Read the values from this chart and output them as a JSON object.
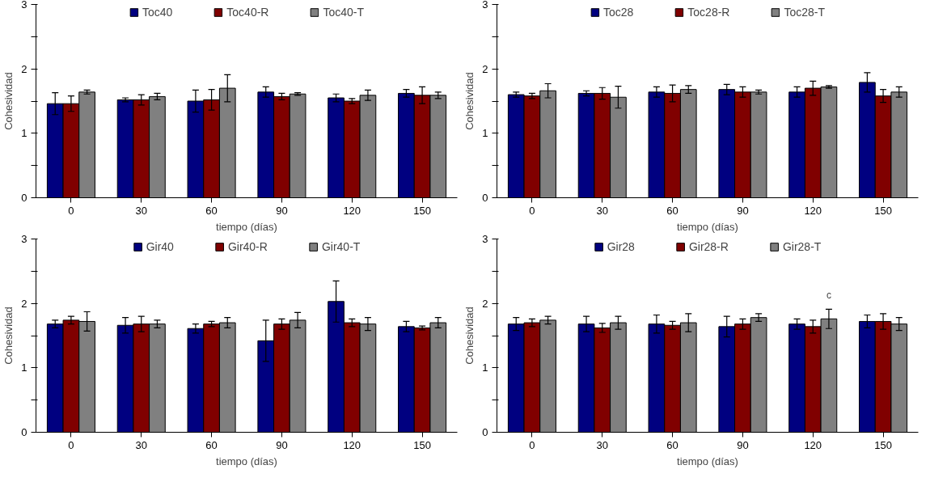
{
  "chart_data": [
    {
      "type": "bar",
      "xlabel": "tiempo (días)",
      "ylabel": "Cohesividad",
      "categories": [
        "0",
        "30",
        "60",
        "90",
        "120",
        "150"
      ],
      "ylim": [
        0,
        3
      ],
      "yticks": [
        0,
        {
          "value": 0.5,
          "label": null
        },
        1,
        {
          "value": 1.5,
          "label": null
        },
        2,
        {
          "value": 2.5,
          "label": null
        },
        3
      ],
      "grid": false,
      "legend": "top",
      "series": [
        {
          "name": "Toc40",
          "color": "#000080",
          "values": [
            1.46,
            1.52,
            1.5,
            1.64,
            1.55,
            1.62
          ],
          "errors": [
            0.17,
            0.03,
            0.17,
            0.08,
            0.06,
            0.06
          ]
        },
        {
          "name": "Toc40-R",
          "color": "#800000",
          "values": [
            1.46,
            1.52,
            1.52,
            1.57,
            1.5,
            1.59
          ],
          "errors": [
            0.12,
            0.08,
            0.16,
            0.05,
            0.04,
            0.13
          ]
        },
        {
          "name": "Toc40-T",
          "color": "#808080",
          "values": [
            1.64,
            1.57,
            1.7,
            1.61,
            1.59,
            1.59
          ],
          "errors": [
            0.03,
            0.05,
            0.21,
            0.02,
            0.08,
            0.05
          ]
        }
      ]
    },
    {
      "type": "bar",
      "xlabel": "tiempo (días)",
      "ylabel": "Cohesividad",
      "categories": [
        "0",
        "30",
        "60",
        "90",
        "120",
        "150"
      ],
      "ylim": [
        0,
        3
      ],
      "yticks": [
        0,
        {
          "value": 0.5,
          "label": null
        },
        1,
        {
          "value": 1.5,
          "label": null
        },
        2,
        {
          "value": 2.5,
          "label": null
        },
        3
      ],
      "grid": false,
      "legend": "top",
      "series": [
        {
          "name": "Toc28",
          "color": "#000080",
          "values": [
            1.6,
            1.62,
            1.64,
            1.68,
            1.64,
            1.79
          ],
          "errors": [
            0.04,
            0.04,
            0.08,
            0.08,
            0.08,
            0.15
          ]
        },
        {
          "name": "Toc28-R",
          "color": "#800000",
          "values": [
            1.58,
            1.62,
            1.62,
            1.64,
            1.7,
            1.58
          ],
          "errors": [
            0.04,
            0.09,
            0.13,
            0.08,
            0.11,
            0.1
          ]
        },
        {
          "name": "Toc28-T",
          "color": "#808080",
          "values": [
            1.66,
            1.56,
            1.68,
            1.64,
            1.72,
            1.64
          ],
          "errors": [
            0.11,
            0.17,
            0.06,
            0.03,
            0.02,
            0.08
          ]
        }
      ]
    },
    {
      "type": "bar",
      "xlabel": "tiempo (días)",
      "ylabel": "Cohesividad",
      "categories": [
        "0",
        "30",
        "60",
        "90",
        "120",
        "150"
      ],
      "ylim": [
        0,
        3
      ],
      "yticks": [
        0,
        {
          "value": 0.5,
          "label": null
        },
        1,
        {
          "value": 1.5,
          "label": null
        },
        2,
        {
          "value": 2.5,
          "label": null
        },
        3
      ],
      "grid": false,
      "legend": "top",
      "series": [
        {
          "name": "Gir40",
          "color": "#000080",
          "values": [
            1.68,
            1.66,
            1.61,
            1.42,
            2.03,
            1.64
          ],
          "errors": [
            0.06,
            0.12,
            0.07,
            0.32,
            0.32,
            0.08
          ]
        },
        {
          "name": "Gir40-R",
          "color": "#800000",
          "values": [
            1.74,
            1.68,
            1.68,
            1.68,
            1.7,
            1.62
          ],
          "errors": [
            0.06,
            0.12,
            0.04,
            0.08,
            0.06,
            0.03
          ]
        },
        {
          "name": "Gir40-T",
          "color": "#808080",
          "values": [
            1.72,
            1.68,
            1.7,
            1.74,
            1.68,
            1.7
          ],
          "errors": [
            0.15,
            0.06,
            0.08,
            0.12,
            0.1,
            0.08
          ]
        }
      ]
    },
    {
      "type": "bar",
      "xlabel": "tiempo (días)",
      "ylabel": "Cohesividad",
      "categories": [
        "0",
        "30",
        "60",
        "90",
        "120",
        "150"
      ],
      "ylim": [
        0,
        3
      ],
      "yticks": [
        0,
        {
          "value": 0.5,
          "label": null
        },
        1,
        {
          "value": 1.5,
          "label": null
        },
        2,
        {
          "value": 2.5,
          "label": null
        },
        3
      ],
      "grid": false,
      "legend": "top",
      "annotations": [
        {
          "text": "c",
          "x": "120",
          "y": 1.76
        }
      ],
      "series": [
        {
          "name": "Gir28",
          "color": "#000080",
          "values": [
            1.68,
            1.68,
            1.68,
            1.64,
            1.68,
            1.72
          ],
          "errors": [
            0.1,
            0.12,
            0.14,
            0.16,
            0.08,
            0.1
          ]
        },
        {
          "name": "Gir28-R",
          "color": "#800000",
          "values": [
            1.7,
            1.62,
            1.66,
            1.68,
            1.64,
            1.72
          ],
          "errors": [
            0.06,
            0.07,
            0.06,
            0.08,
            0.1,
            0.12
          ]
        },
        {
          "name": "Gir28-T",
          "color": "#808080",
          "values": [
            1.74,
            1.7,
            1.7,
            1.78,
            1.76,
            1.68
          ],
          "errors": [
            0.06,
            0.1,
            0.14,
            0.06,
            0.15,
            0.1
          ]
        }
      ]
    }
  ]
}
